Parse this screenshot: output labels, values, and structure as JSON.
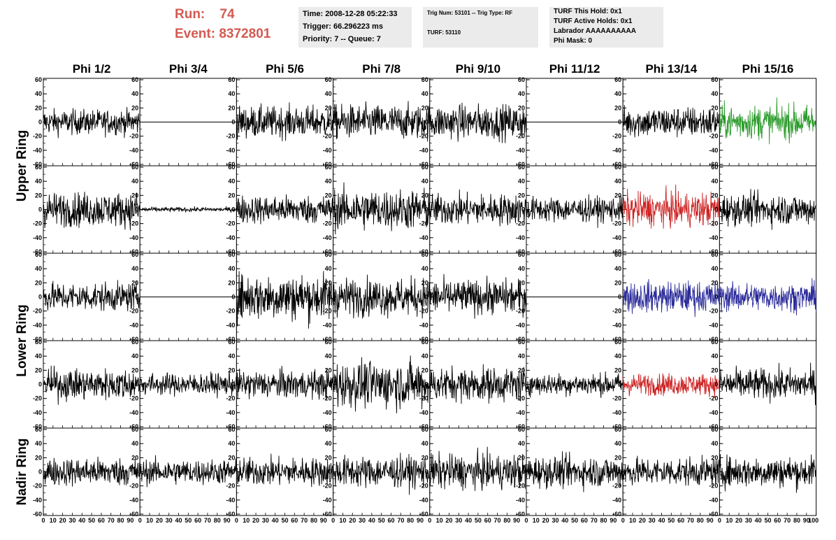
{
  "header": {
    "run_label": "Run:",
    "run_value": "74",
    "event_label": "Event:",
    "event_value": "8372801",
    "time": "Time: 2008-12-28 05:22:33",
    "trigger": "Trigger: 66.296223 ms",
    "priority": "Priority: 7 -- Queue: 7",
    "trig_num": "Trig Num: 53101 -- Trig Type: RF",
    "turf": "TURF: 53110",
    "turf_this_hold": "TURF This Hold: 0x1",
    "turf_active_holds": "TURF Active Holds: 0x1",
    "labrador": "Labrador AAAAAAAAAA",
    "phi_mask": "Phi Mask: 0"
  },
  "colors": {
    "header_text": "#d35a52",
    "info_bg": "#ebebeb",
    "trace_default": "#000000",
    "trace_green": "#2a9a2a",
    "trace_red": "#cc2222",
    "trace_blue": "#2a2a9a"
  },
  "chart_data": {
    "type": "line",
    "description_of_grid": "5 rows x 8 columns of waveform panels",
    "columns": [
      "Phi 1/2",
      "Phi 3/4",
      "Phi 5/6",
      "Phi 7/8",
      "Phi 9/10",
      "Phi 11/12",
      "Phi 13/14",
      "Phi 15/16"
    ],
    "row_groups": [
      {
        "label": "Upper Ring",
        "rows": [
          0,
          1
        ]
      },
      {
        "label": "Lower Ring",
        "rows": [
          2,
          3
        ]
      },
      {
        "label": "Nadir Ring",
        "rows": [
          4
        ]
      }
    ],
    "xlim": [
      0,
      100
    ],
    "ylim": [
      -62,
      62
    ],
    "yticks": [
      -60,
      -40,
      -20,
      0,
      20,
      40,
      60
    ],
    "xtick_labels": [
      "0",
      "10",
      "20",
      "30",
      "40",
      "50",
      "60",
      "70",
      "80",
      "90",
      "100"
    ],
    "last_column_extra_xtick": "100",
    "n_samples": 260,
    "panels": [
      [
        {
          "amp": 16,
          "flat": false,
          "color": "trace_default"
        },
        {
          "amp": 0,
          "flat": true,
          "color": "trace_default"
        },
        {
          "amp": 20,
          "flat": false,
          "color": "trace_default"
        },
        {
          "amp": 22,
          "flat": false,
          "color": "trace_default"
        },
        {
          "amp": 22,
          "flat": false,
          "color": "trace_default"
        },
        {
          "amp": 0,
          "flat": true,
          "color": "trace_default"
        },
        {
          "amp": 20,
          "flat": false,
          "color": "trace_default"
        },
        {
          "amp": 22,
          "flat": false,
          "color": "trace_green"
        }
      ],
      [
        {
          "amp": 22,
          "flat": false,
          "color": "trace_default"
        },
        {
          "amp": 3,
          "flat": false,
          "color": "trace_default"
        },
        {
          "amp": 18,
          "flat": false,
          "color": "trace_default"
        },
        {
          "amp": 26,
          "flat": false,
          "color": "trace_default"
        },
        {
          "amp": 20,
          "flat": false,
          "color": "trace_default"
        },
        {
          "amp": 16,
          "flat": false,
          "color": "trace_default"
        },
        {
          "amp": 22,
          "flat": false,
          "color": "trace_red"
        },
        {
          "amp": 20,
          "flat": false,
          "color": "trace_default"
        }
      ],
      [
        {
          "amp": 18,
          "flat": false,
          "color": "trace_default"
        },
        {
          "amp": 0,
          "flat": true,
          "color": "trace_default"
        },
        {
          "amp": 30,
          "flat": false,
          "color": "trace_default"
        },
        {
          "amp": 24,
          "flat": false,
          "color": "trace_default"
        },
        {
          "amp": 22,
          "flat": false,
          "color": "trace_default"
        },
        {
          "amp": 0,
          "flat": true,
          "color": "trace_default"
        },
        {
          "amp": 20,
          "flat": false,
          "color": "trace_blue"
        },
        {
          "amp": 18,
          "flat": false,
          "color": "trace_blue"
        }
      ],
      [
        {
          "amp": 20,
          "flat": false,
          "color": "trace_default"
        },
        {
          "amp": 14,
          "flat": false,
          "color": "trace_default"
        },
        {
          "amp": 18,
          "flat": false,
          "color": "trace_default"
        },
        {
          "amp": 30,
          "flat": false,
          "color": "trace_default"
        },
        {
          "amp": 22,
          "flat": false,
          "color": "trace_default"
        },
        {
          "amp": 14,
          "flat": false,
          "color": "trace_default"
        },
        {
          "amp": 14,
          "flat": false,
          "color": "trace_red"
        },
        {
          "amp": 20,
          "flat": false,
          "color": "trace_default"
        }
      ],
      [
        {
          "amp": 18,
          "flat": false,
          "color": "trace_default"
        },
        {
          "amp": 16,
          "flat": false,
          "color": "trace_default"
        },
        {
          "amp": 18,
          "flat": false,
          "color": "trace_default"
        },
        {
          "amp": 20,
          "flat": false,
          "color": "trace_default"
        },
        {
          "amp": 22,
          "flat": false,
          "color": "trace_default"
        },
        {
          "amp": 20,
          "flat": false,
          "color": "trace_default"
        },
        {
          "amp": 18,
          "flat": false,
          "color": "trace_default"
        },
        {
          "amp": 20,
          "flat": false,
          "color": "trace_default"
        }
      ]
    ]
  }
}
